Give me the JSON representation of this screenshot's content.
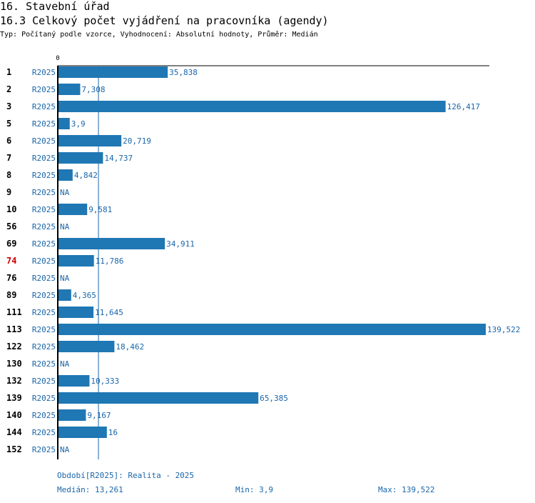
{
  "header": {
    "title": "16. Stavební úřad",
    "subtitle": "16.3 Celkový počet vyjádření na pracovníka (agendy)",
    "meta_type_label": "Typ:",
    "meta_type": "Počítaný podle vzorce",
    "meta_eval_label": "Vyhodnocení:",
    "meta_eval": "Absolutní hodnoty",
    "meta_avg_label": "Průměr:",
    "meta_avg": "Medián"
  },
  "chart_data": {
    "type": "bar",
    "orientation": "horizontal",
    "series_name": "R2025",
    "axis_start_label": "0",
    "xlim": [
      0,
      139.522
    ],
    "median": 13.261,
    "categories": [
      "1",
      "2",
      "3",
      "5",
      "6",
      "7",
      "8",
      "9",
      "10",
      "56",
      "69",
      "74",
      "76",
      "89",
      "111",
      "113",
      "122",
      "130",
      "132",
      "139",
      "140",
      "144",
      "152"
    ],
    "highlighted_category": "74",
    "values": [
      35.838,
      7.308,
      126.417,
      3.9,
      20.719,
      14.737,
      4.842,
      null,
      9.581,
      null,
      34.911,
      11.786,
      null,
      4.365,
      11.645,
      139.522,
      18.462,
      null,
      10.333,
      65.385,
      9.167,
      16,
      null
    ],
    "value_labels": [
      "35,838",
      "7,308",
      "126,417",
      "3,9",
      "20,719",
      "14,737",
      "4,842",
      "NA",
      "9,581",
      "NA",
      "34,911",
      "11,786",
      "NA",
      "4,365",
      "11,645",
      "139,522",
      "18,462",
      "NA",
      "10,333",
      "65,385",
      "9,167",
      "16",
      "NA"
    ],
    "colors": {
      "bar": "#1f77b4",
      "text": "#1a66aa",
      "highlight": "#cc0000",
      "axis": "#000000"
    }
  },
  "footer": {
    "period": "Období[R2025]: Realita - 2025",
    "median": "Medián: 13,261",
    "min": "Min: 3,9",
    "max": "Max: 139,522"
  }
}
